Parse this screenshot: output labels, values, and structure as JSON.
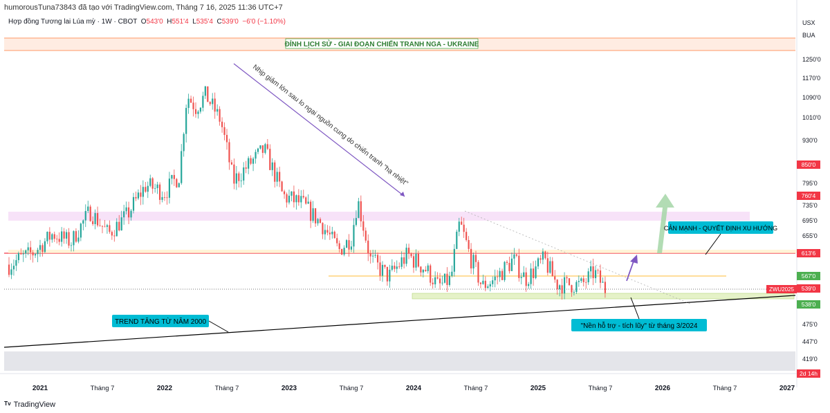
{
  "header": {
    "attribution": "humorousTuna73843 đã tạo với TradingView.com, Tháng 7 16, 2025 11:36 UTC+7",
    "symbol": "Hợp đồng Tương lai Lúa mỳ · 1W · CBOT",
    "o_label": "O",
    "o_value": "543'0",
    "h_label": "H",
    "h_value": "551'4",
    "l_label": "L",
    "l_value": "535'4",
    "c_label": "C",
    "c_value": "539'0",
    "change": "−6'0 (−1.10%)"
  },
  "footer": {
    "logo_icon": "tradingview-logo-icon",
    "brand": "TradingView"
  },
  "colors": {
    "up": "#26a69a",
    "down": "#ef5350",
    "accent": "#f23645",
    "note_bg": "#00bcd4"
  },
  "chart_data": {
    "type": "candlestick",
    "currency": "USX",
    "currency_sub": "BUA",
    "y_ticks": [
      "1250'0",
      "1170'0",
      "1090'0",
      "1010'0",
      "930'0",
      "795'0",
      "735'0",
      "695'0",
      "655'0",
      "475'0",
      "447'0",
      "419'0",
      "395'0"
    ],
    "x_ticks": [
      "2021",
      "Tháng 7",
      "2022",
      "Tháng 7",
      "2023",
      "Tháng 7",
      "2024",
      "Tháng 7",
      "2025",
      "Tháng 7",
      "2026",
      "Tháng 7",
      "2027"
    ],
    "price_labels": [
      {
        "text": "850'0",
        "color": "#f23645"
      },
      {
        "text": "760'4",
        "color": "#f23645"
      },
      {
        "text": "613'6",
        "color": "#f23645"
      },
      {
        "text": "567'0",
        "color": "#4caf50"
      },
      {
        "text": "539'0",
        "color": "#f23645"
      },
      {
        "text": "2d 14h",
        "color": "#f23645"
      },
      {
        "text": "538'0",
        "color": "#4caf50"
      }
    ],
    "symbol_tag": "ZWU2025",
    "annotations": {
      "top_zone": "ĐỈNH LỊCH SỬ - GIAI ĐOẠN CHIẾN TRANH NGA - UKRAINE",
      "decline": "Nhịp giảm lớn sau lo ngại nguồn cung do chiến tranh \"hạ nhiệt\"",
      "trend": "TREND TĂNG TỪ NĂM 2000",
      "strong_resistance": "CẢN MẠNH - QUYẾT ĐỊNH XU HƯỚNG",
      "support_base": "\"Nền hỗ trợ - tích lũy\" từ tháng 3/2024"
    },
    "anchors": [
      {
        "time": 2020.75,
        "price": 590
      },
      {
        "time": 2020.95,
        "price": 615
      },
      {
        "time": 2021.1,
        "price": 660
      },
      {
        "time": 2021.25,
        "price": 640
      },
      {
        "time": 2021.4,
        "price": 720
      },
      {
        "time": 2021.55,
        "price": 660
      },
      {
        "time": 2021.7,
        "price": 710
      },
      {
        "time": 2021.85,
        "price": 790
      },
      {
        "time": 2022.0,
        "price": 770
      },
      {
        "time": 2022.12,
        "price": 820
      },
      {
        "time": 2022.18,
        "price": 1100
      },
      {
        "time": 2022.25,
        "price": 1050
      },
      {
        "time": 2022.33,
        "price": 1100
      },
      {
        "time": 2022.45,
        "price": 1000
      },
      {
        "time": 2022.55,
        "price": 800
      },
      {
        "time": 2022.7,
        "price": 860
      },
      {
        "time": 2022.8,
        "price": 900
      },
      {
        "time": 2022.95,
        "price": 760
      },
      {
        "time": 2023.1,
        "price": 740
      },
      {
        "time": 2023.25,
        "price": 690
      },
      {
        "time": 2023.4,
        "price": 620
      },
      {
        "time": 2023.5,
        "price": 650
      },
      {
        "time": 2023.55,
        "price": 750
      },
      {
        "time": 2023.65,
        "price": 600
      },
      {
        "time": 2023.8,
        "price": 565
      },
      {
        "time": 2023.95,
        "price": 610
      },
      {
        "time": 2024.1,
        "price": 580
      },
      {
        "time": 2024.2,
        "price": 545
      },
      {
        "time": 2024.3,
        "price": 560
      },
      {
        "time": 2024.37,
        "price": 690
      },
      {
        "time": 2024.45,
        "price": 610
      },
      {
        "time": 2024.55,
        "price": 545
      },
      {
        "time": 2024.65,
        "price": 560
      },
      {
        "time": 2024.8,
        "price": 600
      },
      {
        "time": 2024.9,
        "price": 560
      },
      {
        "time": 2025.05,
        "price": 600
      },
      {
        "time": 2025.15,
        "price": 550
      },
      {
        "time": 2025.35,
        "price": 548
      },
      {
        "time": 2025.45,
        "price": 575
      },
      {
        "time": 2025.54,
        "price": 539
      }
    ]
  }
}
